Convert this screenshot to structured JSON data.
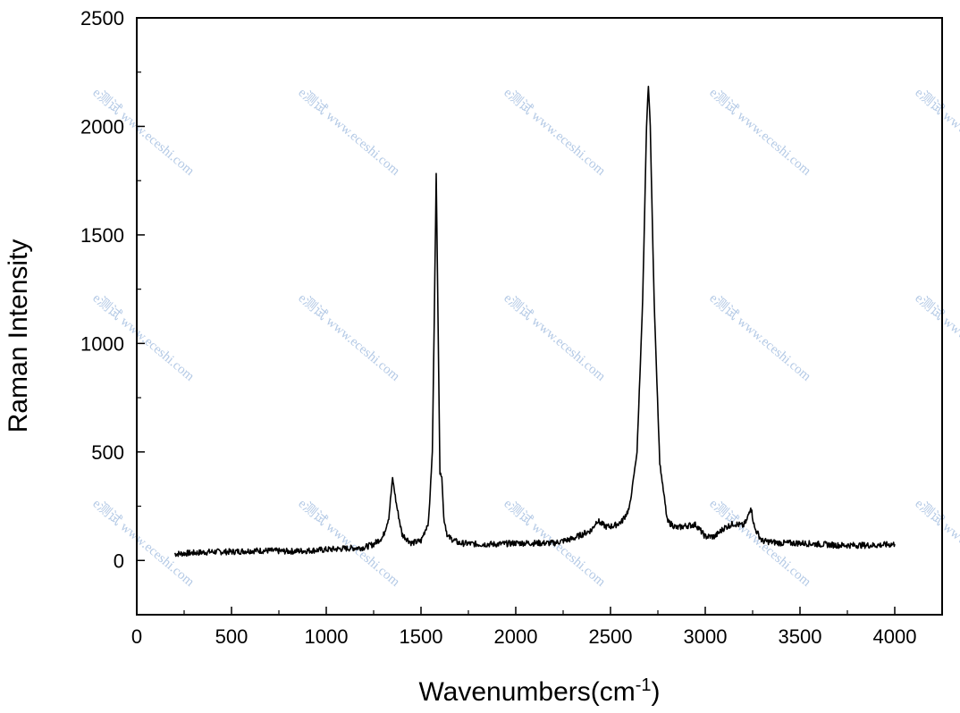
{
  "chart_data": {
    "type": "line",
    "title": "",
    "xlabel": "Wavenumbers(cm",
    "xlabel_superscript": "-1",
    "xlabel_suffix": ")",
    "ylabel": "Raman Intensity",
    "xlim": [
      0,
      4250
    ],
    "ylim": [
      -250,
      2500
    ],
    "xticks": [
      0,
      500,
      1000,
      1500,
      2000,
      2500,
      3000,
      3500,
      4000
    ],
    "yticks": [
      0,
      500,
      1000,
      1500,
      2000,
      2500
    ],
    "grid": false,
    "legend": "none",
    "line_color": "#000000",
    "series": [
      {
        "x": [
          200,
          300,
          400,
          500,
          600,
          700,
          800,
          900,
          1000,
          1100,
          1200,
          1250,
          1300,
          1330,
          1350,
          1370,
          1400,
          1450,
          1500,
          1540,
          1560,
          1570,
          1580,
          1590,
          1600,
          1610,
          1620,
          1640,
          1700,
          1800,
          1900,
          2000,
          2100,
          2200,
          2300,
          2400,
          2430,
          2450,
          2480,
          2520,
          2560,
          2600,
          2640,
          2670,
          2690,
          2700,
          2710,
          2730,
          2760,
          2800,
          2850,
          2900,
          2950,
          3000,
          3050,
          3100,
          3150,
          3200,
          3220,
          3240,
          3260,
          3300,
          3400,
          3500,
          3600,
          3700,
          3800,
          3900,
          4000
        ],
        "y": [
          30,
          35,
          40,
          40,
          45,
          45,
          42,
          45,
          50,
          55,
          60,
          75,
          110,
          200,
          380,
          260,
          120,
          80,
          90,
          180,
          500,
          1100,
          1780,
          1100,
          400,
          390,
          200,
          110,
          80,
          75,
          75,
          80,
          80,
          80,
          100,
          140,
          185,
          170,
          155,
          160,
          180,
          240,
          500,
          1200,
          2000,
          2190,
          2000,
          1200,
          450,
          180,
          150,
          160,
          165,
          110,
          110,
          150,
          170,
          160,
          185,
          250,
          150,
          90,
          80,
          80,
          75,
          70,
          70,
          70,
          75
        ]
      }
    ]
  },
  "watermark": {
    "text": "e测试 www.eceshi.com"
  }
}
